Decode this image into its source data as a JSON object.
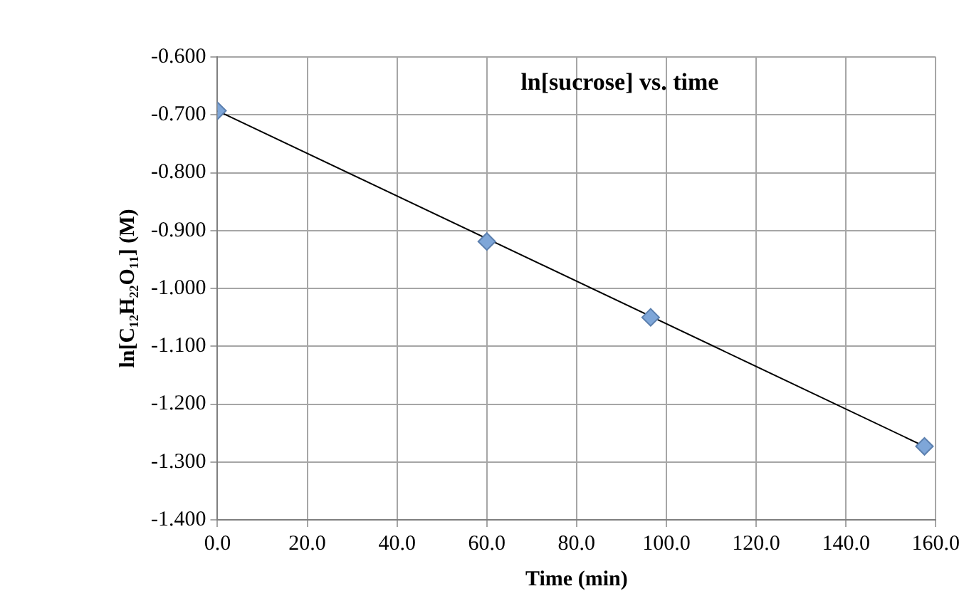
{
  "chart_data": {
    "type": "scatter",
    "title": "ln[sucrose] vs. time",
    "xlabel": "Time (min)",
    "ylabel": "ln[C₁₂H₂₂O₁₁] (M)",
    "series": [
      {
        "type": "scatter",
        "color": "#7ea6d8",
        "x": [
          0,
          60,
          96.5,
          157.5
        ],
        "values": [
          -0.693,
          -0.919,
          -1.05,
          -1.273
        ],
        "marker": "diamond"
      },
      {
        "type": "line",
        "color": "#000000",
        "x": [
          0,
          157.5
        ],
        "values": [
          -0.693,
          -1.273
        ],
        "marker": "none"
      }
    ],
    "xlim": [
      0,
      160
    ],
    "xticks": [
      {
        "value": 0,
        "label": "0.0"
      },
      {
        "value": 20,
        "label": "20.0"
      },
      {
        "value": 40,
        "label": "40.0"
      },
      {
        "value": 60,
        "label": "60.0"
      },
      {
        "value": 80,
        "label": "80.0"
      },
      {
        "value": 100,
        "label": "100.0"
      },
      {
        "value": 120,
        "label": "120.0"
      },
      {
        "value": 140,
        "label": "140.0"
      },
      {
        "value": 160,
        "label": "160.0"
      }
    ],
    "ylim": [
      -1.4,
      -0.6
    ],
    "yticks": [
      {
        "value": -1.4,
        "label": "-1.400"
      },
      {
        "value": -1.3,
        "label": "-1.300"
      },
      {
        "value": -1.2,
        "label": "-1.200"
      },
      {
        "value": -1.1,
        "label": "-1.100"
      },
      {
        "value": -1.0,
        "label": "-1.000"
      },
      {
        "value": -0.9,
        "label": "-0.900"
      },
      {
        "value": -0.8,
        "label": "-0.800"
      },
      {
        "value": -0.7,
        "label": "-0.700"
      },
      {
        "value": -0.6,
        "label": "-0.600"
      }
    ],
    "grid": true,
    "legend": false
  }
}
